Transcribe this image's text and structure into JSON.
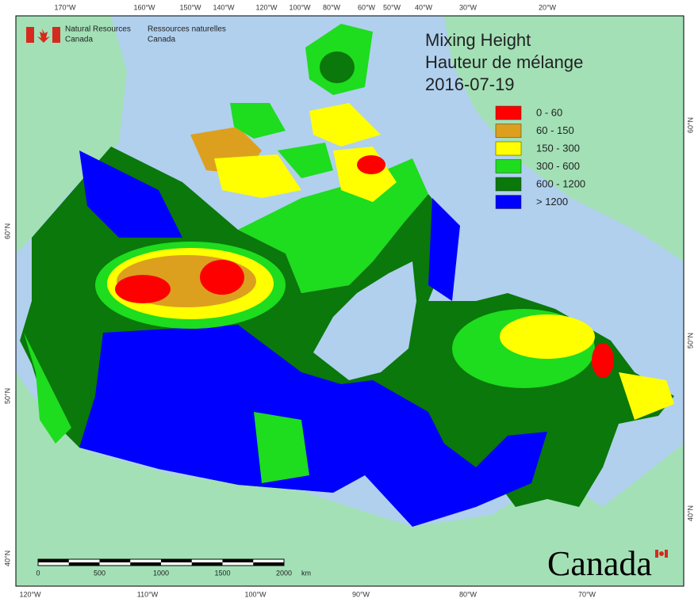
{
  "header": {
    "agency_en": [
      "Natural Resources",
      "Canada"
    ],
    "agency_fr": [
      "Ressources naturelles",
      "Canada"
    ]
  },
  "title": [
    "Mixing Height",
    "Hauteur de mélange",
    "2016-07-19"
  ],
  "legend": [
    {
      "label": "0 - 60",
      "color": "#ff0000"
    },
    {
      "label": "60 - 150",
      "color": "#dca01e"
    },
    {
      "label": "150 - 300",
      "color": "#ffff00"
    },
    {
      "label": "300 - 600",
      "color": "#1edc1e"
    },
    {
      "label": "600 - 1200",
      "color": "#0a780a"
    },
    {
      "label": "> 1200",
      "color": "#0000ff"
    }
  ],
  "graticule": {
    "top": [
      "170°W",
      "160°W",
      "150°W",
      "140°W",
      "120°W",
      "100°W",
      "80°W",
      "60°W",
      "50°W",
      "40°W",
      "30°W",
      "20°W"
    ],
    "bottom": [
      "120°W",
      "110°W",
      "100°W",
      "90°W",
      "80°W",
      "70°W"
    ],
    "left": [
      "60°N",
      "50°N",
      "40°N"
    ],
    "right": [
      "60°N",
      "50°N",
      "40°N"
    ]
  },
  "scale_bar": {
    "labels": [
      "0",
      "500",
      "1000",
      "1500",
      "2000"
    ],
    "unit": "km"
  },
  "wordmark": "Canada"
}
